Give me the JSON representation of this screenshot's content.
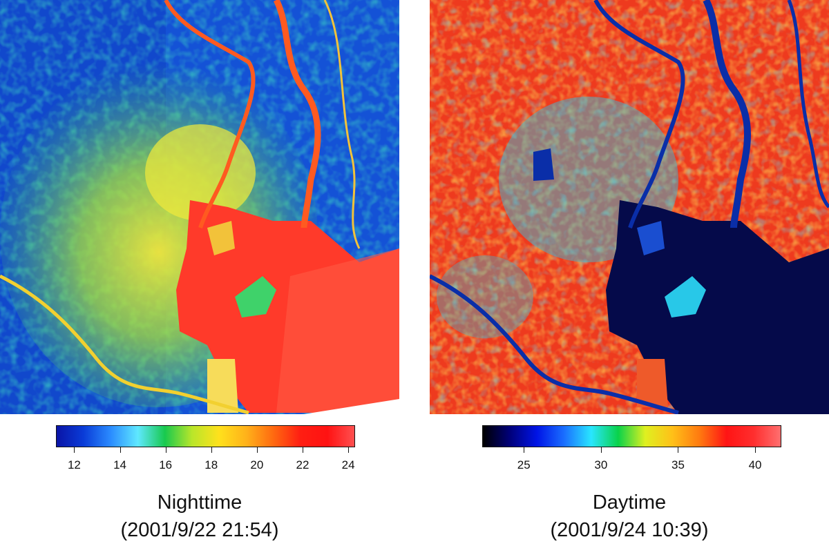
{
  "panels": [
    {
      "id": "night",
      "title": "Nighttime",
      "subtitle": "(2001/9/22 21:54)",
      "colorbar": {
        "min": 11.2,
        "max": 24.3,
        "ticks": [
          12,
          14,
          16,
          18,
          20,
          22,
          24
        ],
        "stops": [
          "#0a14a6",
          "#0a3cd8",
          "#2b8cff",
          "#5fe8ff",
          "#18c94e",
          "#b9e62a",
          "#ffe11c",
          "#ffb21a",
          "#ff6a10",
          "#ff1e12",
          "#ff1212",
          "#ff5050"
        ],
        "colors": {
          "background": "#1c6fe0",
          "mid": "#3fd26a",
          "warm": "#f2e93a",
          "hot": "#ff2f1f",
          "water": "#ff3a2a",
          "blank": "#ffffff"
        }
      }
    },
    {
      "id": "day",
      "title": "Daytime",
      "subtitle": "(2001/9/24 10:39)",
      "colorbar": {
        "min": 22.3,
        "max": 41.7,
        "ticks": [
          25,
          30,
          35,
          40
        ],
        "stops": [
          "#000000",
          "#00007a",
          "#0014e6",
          "#1a6eff",
          "#29e6ff",
          "#0ad24a",
          "#dff020",
          "#ffc018",
          "#ff7a10",
          "#ff1414",
          "#ff2e2e",
          "#ff6f6f"
        ],
        "colors": {
          "background": "#ee3a1e",
          "mid": "#f7a020",
          "cool": "#28c8e8",
          "river": "#0a2ea8",
          "water": "#050a4a"
        }
      }
    }
  ]
}
